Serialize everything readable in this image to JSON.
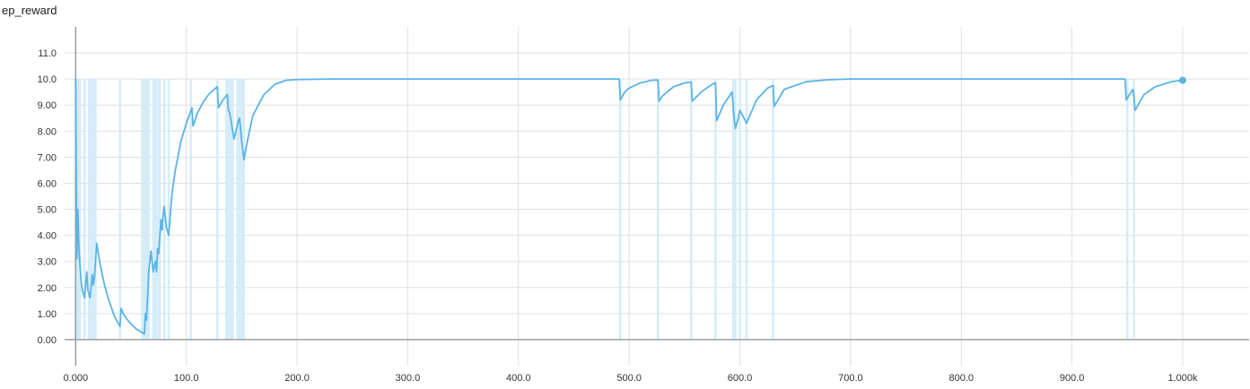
{
  "chart_data": {
    "type": "line",
    "title": "ep_reward",
    "xlabel": "",
    "ylabel": "",
    "xlim": [
      -10,
      1060
    ],
    "ylim": [
      -1,
      12
    ],
    "x_ticks": [
      0,
      100,
      200,
      300,
      400,
      500,
      600,
      700,
      800,
      900,
      1000
    ],
    "x_tick_labels": [
      "0.000",
      "100.0",
      "200.0",
      "300.0",
      "400.0",
      "500.0",
      "600.0",
      "700.0",
      "800.0",
      "900.0",
      "1.000k"
    ],
    "y_ticks": [
      0,
      1,
      2,
      3,
      4,
      5,
      6,
      7,
      8,
      9,
      10,
      11
    ],
    "y_tick_labels": [
      "0.00",
      "1.00",
      "2.00",
      "3.00",
      "4.00",
      "5.00",
      "6.00",
      "7.00",
      "8.00",
      "9.00",
      "10.0",
      "11.0"
    ],
    "grid": true,
    "colors": {
      "smoothed": "#5AB4E6",
      "raw": "#D4ECF8",
      "grid": "#E0E0E0",
      "axis": "#9E9E9E"
    },
    "raw_low_episodes": [
      0,
      2,
      4,
      8,
      12,
      14,
      16,
      18,
      40,
      60,
      62,
      64,
      66,
      70,
      72,
      74,
      76,
      80,
      84,
      104,
      128,
      136,
      138,
      140,
      142,
      146,
      148,
      150,
      152,
      492,
      526,
      556,
      578,
      594,
      596,
      600,
      606,
      630,
      950,
      956
    ],
    "series": [
      {
        "name": "ep_reward (smoothed)",
        "x": [
          0,
          1,
          2,
          3,
          4,
          5,
          6,
          8,
          10,
          11,
          13,
          15,
          16,
          17,
          19,
          22,
          26,
          30,
          35,
          40,
          41,
          43,
          46,
          50,
          55,
          62,
          63,
          64,
          66,
          68,
          70,
          72,
          73,
          74,
          75,
          77,
          78,
          79,
          80,
          82,
          84,
          87,
          90,
          95,
          100,
          105,
          106,
          110,
          115,
          120,
          125,
          128,
          129,
          133,
          137,
          138,
          139,
          140,
          141,
          143,
          146,
          147,
          148,
          150,
          152,
          155,
          160,
          170,
          180,
          190,
          200,
          230,
          260,
          300,
          400,
          491,
          492,
          496,
          500,
          510,
          520,
          526,
          527,
          530,
          540,
          550,
          556,
          557,
          565,
          575,
          578,
          579,
          585,
          593,
          594,
          595,
          596,
          598,
          600,
          605,
          606,
          607,
          615,
          625,
          630,
          631,
          640,
          660,
          680,
          700,
          750,
          800,
          900,
          948,
          949,
          955,
          956,
          957,
          965,
          975,
          990,
          1000
        ],
        "values": [
          10.0,
          3.1,
          5.0,
          3.4,
          2.8,
          2.2,
          1.9,
          1.6,
          2.6,
          1.9,
          1.6,
          2.5,
          2.1,
          2.4,
          3.7,
          2.9,
          2.1,
          1.5,
          0.9,
          0.5,
          1.2,
          1.0,
          0.8,
          0.6,
          0.4,
          0.22,
          1.0,
          0.75,
          2.6,
          3.4,
          2.6,
          3.0,
          2.6,
          3.5,
          3.3,
          4.6,
          4.2,
          4.8,
          5.1,
          4.3,
          4.0,
          5.6,
          6.5,
          7.6,
          8.3,
          8.9,
          8.2,
          8.7,
          9.1,
          9.4,
          9.6,
          9.7,
          8.9,
          9.2,
          9.4,
          8.8,
          8.7,
          8.5,
          8.2,
          7.7,
          8.2,
          8.4,
          8.5,
          7.6,
          6.9,
          7.6,
          8.6,
          9.4,
          9.8,
          9.95,
          9.98,
          10.0,
          10.0,
          10.0,
          10.0,
          10.0,
          9.2,
          9.5,
          9.65,
          9.85,
          9.95,
          9.96,
          9.15,
          9.35,
          9.7,
          9.85,
          9.88,
          9.15,
          9.5,
          9.8,
          9.85,
          8.4,
          9.0,
          9.5,
          8.9,
          8.4,
          8.1,
          8.4,
          8.8,
          8.4,
          8.3,
          8.4,
          9.2,
          9.65,
          9.75,
          8.95,
          9.6,
          9.9,
          9.97,
          10.0,
          10.0,
          10.0,
          10.0,
          10.0,
          9.2,
          9.6,
          9.3,
          8.8,
          9.4,
          9.7,
          9.9,
          9.95
        ]
      }
    ]
  }
}
